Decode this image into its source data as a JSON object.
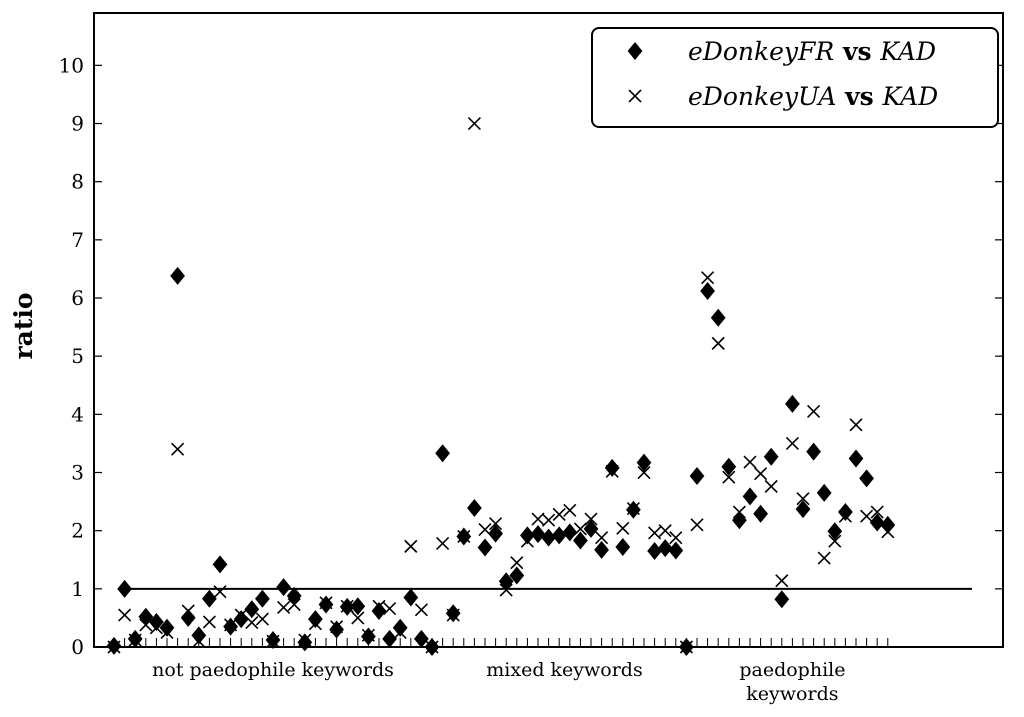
{
  "chart_data": {
    "type": "scatter",
    "ylabel": "ratio",
    "ylim": [
      0,
      10.9
    ],
    "yticks": [
      0,
      1,
      2,
      3,
      4,
      5,
      6,
      7,
      8,
      9,
      10
    ],
    "reference_line": 1,
    "legend_position": "top-right",
    "categories": [
      {
        "label": "not paedophile keywords",
        "lines": [
          "not paedophile keywords"
        ],
        "count": 31
      },
      {
        "label": "mixed keywords",
        "lines": [
          "mixed keywords"
        ],
        "count": 24
      },
      {
        "label": "paedophile keywords",
        "lines": [
          "paedophile",
          "keywords"
        ],
        "count": 19
      }
    ],
    "series": [
      {
        "name": "eDonkeyFR vs KAD",
        "legend_parts": [
          {
            "text": "eDonkeyFR",
            "style": "it"
          },
          {
            "text": " vs ",
            "style": "bd"
          },
          {
            "text": "KAD",
            "style": "it"
          }
        ],
        "marker": "diamond",
        "values": [
          0.02,
          1.0,
          0.14,
          0.52,
          0.43,
          0.33,
          6.38,
          0.5,
          0.2,
          0.83,
          1.42,
          0.35,
          0.48,
          0.65,
          0.83,
          0.12,
          1.03,
          0.88,
          0.08,
          0.48,
          0.73,
          0.3,
          0.69,
          0.7,
          0.18,
          0.62,
          0.14,
          0.33,
          0.85,
          0.14,
          0.0,
          3.33,
          0.58,
          1.9,
          2.39,
          1.71,
          1.95,
          1.13,
          1.23,
          1.92,
          1.94,
          1.88,
          1.92,
          1.97,
          1.83,
          2.03,
          1.67,
          3.08,
          1.72,
          2.36,
          3.17,
          1.65,
          1.7,
          1.66,
          0.0,
          2.94,
          6.12,
          5.66,
          3.1,
          2.18,
          2.59,
          2.29,
          3.27,
          0.82,
          4.18,
          2.37,
          3.36,
          2.65,
          1.99,
          2.32,
          3.24,
          2.9,
          2.14,
          2.1
        ]
      },
      {
        "name": "eDonkeyUA vs KAD",
        "legend_parts": [
          {
            "text": "eDonkeyUA",
            "style": "it"
          },
          {
            "text": " vs ",
            "style": "bd"
          },
          {
            "text": "KAD",
            "style": "it"
          }
        ],
        "marker": "x",
        "values": [
          0.0,
          0.55,
          0.12,
          0.38,
          0.33,
          0.25,
          3.4,
          0.62,
          0.1,
          0.43,
          0.95,
          0.38,
          0.55,
          0.42,
          0.48,
          0.1,
          0.68,
          0.73,
          0.12,
          0.4,
          0.76,
          0.35,
          0.7,
          0.5,
          0.2,
          0.7,
          0.66,
          0.25,
          1.73,
          0.64,
          0.0,
          1.78,
          0.55,
          1.9,
          9.0,
          2.02,
          2.12,
          0.98,
          1.45,
          1.82,
          2.2,
          2.18,
          2.28,
          2.35,
          2.03,
          2.2,
          1.88,
          3.02,
          2.04,
          2.38,
          3.0,
          1.96,
          2.0,
          1.88,
          0.0,
          2.1,
          6.35,
          5.22,
          2.92,
          2.32,
          3.18,
          2.98,
          2.76,
          1.14,
          3.5,
          2.55,
          4.05,
          1.53,
          1.82,
          2.25,
          3.82,
          2.25,
          2.32,
          1.98
        ]
      }
    ]
  }
}
